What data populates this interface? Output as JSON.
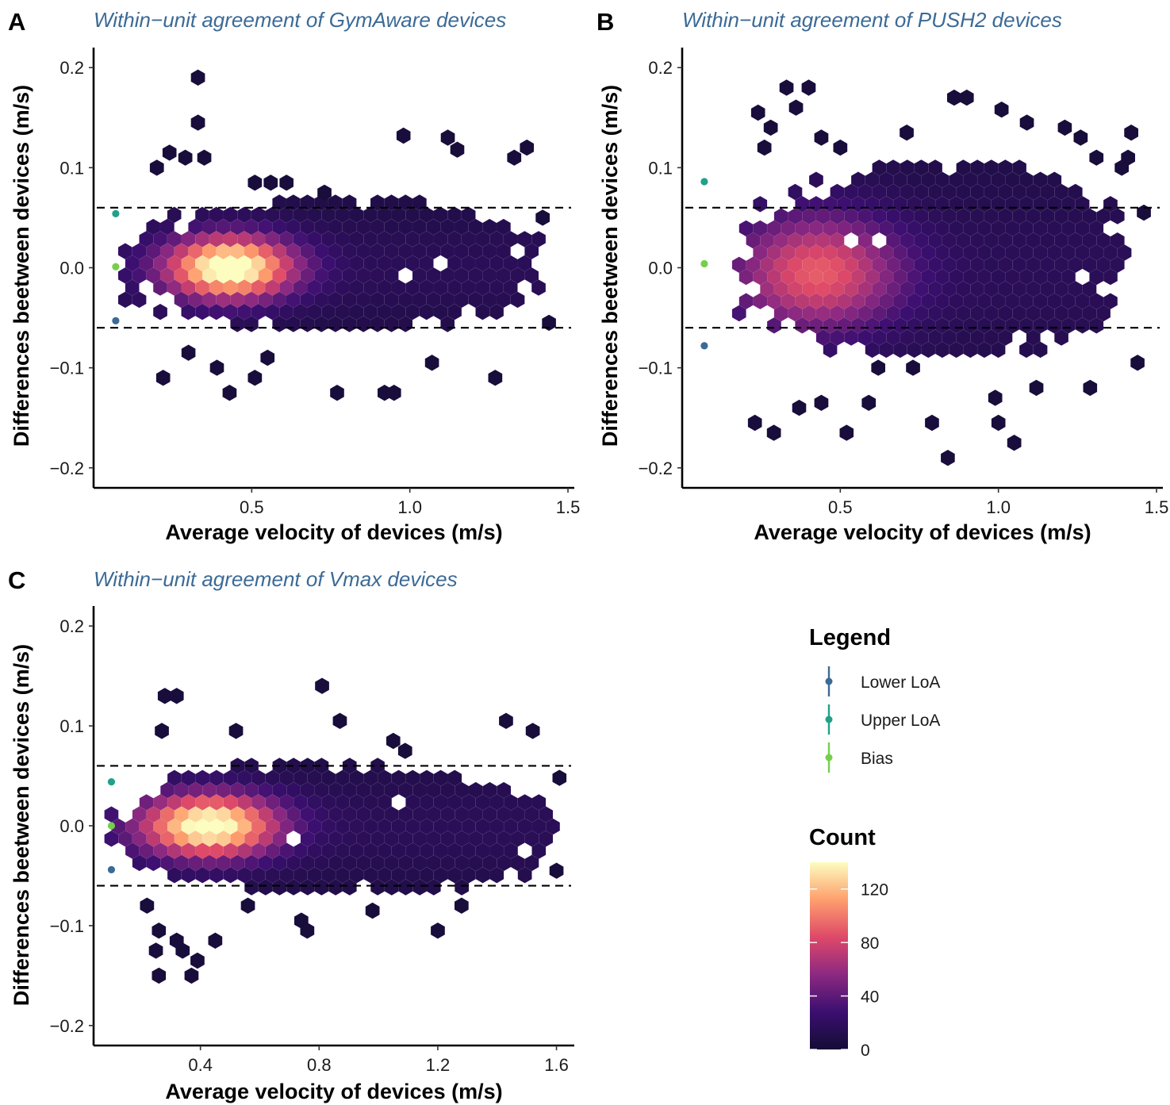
{
  "chart_data": [
    {
      "panel": "A",
      "type": "hexbin",
      "title": "Within−unit agreement of GymAware devices",
      "xlabel": "Average velocity of devices (m/s)",
      "ylabel": "Differences beetween devices (m/s)",
      "xlim": [
        0.0,
        1.52
      ],
      "ylim": [
        -0.22,
        0.22
      ],
      "xticks": [
        {
          "v": 0.5,
          "label": "0.5"
        },
        {
          "v": 1.0,
          "label": "1.0"
        },
        {
          "v": 1.5,
          "label": "1.5"
        }
      ],
      "yticks": [
        {
          "v": 0.2,
          "label": "0.2"
        },
        {
          "v": 0.1,
          "label": "0.1"
        },
        {
          "v": 0.0,
          "label": "0.0"
        },
        {
          "v": -0.1,
          "label": "−0.1"
        },
        {
          "v": -0.2,
          "label": "−0.2"
        }
      ],
      "limits_of_agreement": {
        "upper": 0.06,
        "lower": -0.06
      },
      "points": [
        {
          "name": "Lower LoA",
          "x": 0.07,
          "y": -0.053
        },
        {
          "name": "Upper LoA",
          "x": 0.07,
          "y": 0.054
        },
        {
          "name": "Bias",
          "x": 0.07,
          "y": 0.001
        }
      ],
      "density": {
        "center": [
          0.43,
          0.0
        ],
        "peak": 140,
        "spread_x": 0.14,
        "spread_y": 0.022,
        "x_range": [
          0.1,
          1.42
        ],
        "y_range": [
          -0.065,
          0.065
        ]
      },
      "outliers": [
        [
          0.33,
          0.19
        ],
        [
          0.33,
          0.145
        ],
        [
          0.29,
          0.11
        ],
        [
          0.35,
          0.11
        ],
        [
          0.2,
          0.1
        ],
        [
          0.24,
          0.115
        ],
        [
          0.98,
          0.132
        ],
        [
          1.12,
          0.13
        ],
        [
          1.15,
          0.118
        ],
        [
          1.37,
          0.12
        ],
        [
          1.33,
          0.11
        ],
        [
          0.51,
          0.085
        ],
        [
          0.56,
          0.085
        ],
        [
          0.61,
          0.085
        ],
        [
          0.73,
          0.075
        ],
        [
          1.42,
          0.05
        ],
        [
          0.22,
          -0.11
        ],
        [
          0.39,
          -0.1
        ],
        [
          0.43,
          -0.125
        ],
        [
          0.51,
          -0.11
        ],
        [
          0.77,
          -0.125
        ],
        [
          0.92,
          -0.125
        ],
        [
          0.95,
          -0.125
        ],
        [
          1.27,
          -0.11
        ],
        [
          1.44,
          -0.055
        ],
        [
          0.3,
          -0.085
        ],
        [
          0.55,
          -0.09
        ],
        [
          1.07,
          -0.095
        ]
      ]
    },
    {
      "panel": "B",
      "type": "hexbin",
      "title": "Within−unit agreement of PUSH2 devices",
      "xlabel": "Average velocity of devices (m/s)",
      "ylabel": "Differences beetween devices (m/s)",
      "xlim": [
        0.0,
        1.52
      ],
      "ylim": [
        -0.22,
        0.22
      ],
      "xticks": [
        {
          "v": 0.5,
          "label": "0.5"
        },
        {
          "v": 1.0,
          "label": "1.0"
        },
        {
          "v": 1.5,
          "label": "1.5"
        }
      ],
      "yticks": [
        {
          "v": 0.2,
          "label": "0.2"
        },
        {
          "v": 0.1,
          "label": "0.1"
        },
        {
          "v": 0.0,
          "label": "0.0"
        },
        {
          "v": -0.1,
          "label": "−0.1"
        },
        {
          "v": -0.2,
          "label": "−0.2"
        }
      ],
      "limits_of_agreement": {
        "upper": 0.06,
        "lower": -0.06
      },
      "points": [
        {
          "name": "Lower LoA",
          "x": 0.07,
          "y": -0.078
        },
        {
          "name": "Upper LoA",
          "x": 0.07,
          "y": 0.086
        },
        {
          "name": "Bias",
          "x": 0.07,
          "y": 0.004
        }
      ],
      "density": {
        "center": [
          0.43,
          -0.005
        ],
        "peak": 75,
        "spread_x": 0.18,
        "spread_y": 0.04,
        "x_range": [
          0.18,
          1.42
        ],
        "y_range": [
          -0.09,
          0.1
        ]
      },
      "outliers": [
        [
          0.33,
          0.18
        ],
        [
          0.4,
          0.18
        ],
        [
          0.24,
          0.155
        ],
        [
          0.36,
          0.16
        ],
        [
          0.28,
          0.14
        ],
        [
          0.26,
          0.12
        ],
        [
          0.44,
          0.13
        ],
        [
          0.5,
          0.12
        ],
        [
          0.71,
          0.135
        ],
        [
          0.86,
          0.17
        ],
        [
          0.9,
          0.17
        ],
        [
          1.01,
          0.158
        ],
        [
          1.09,
          0.145
        ],
        [
          1.21,
          0.14
        ],
        [
          1.26,
          0.13
        ],
        [
          1.31,
          0.11
        ],
        [
          1.42,
          0.135
        ],
        [
          1.41,
          0.11
        ],
        [
          1.39,
          0.1
        ],
        [
          1.46,
          0.055
        ],
        [
          0.23,
          -0.155
        ],
        [
          0.29,
          -0.165
        ],
        [
          0.37,
          -0.14
        ],
        [
          0.44,
          -0.135
        ],
        [
          0.52,
          -0.165
        ],
        [
          0.59,
          -0.135
        ],
        [
          0.79,
          -0.155
        ],
        [
          0.84,
          -0.19
        ],
        [
          0.99,
          -0.13
        ],
        [
          1.0,
          -0.155
        ],
        [
          1.05,
          -0.175
        ],
        [
          1.12,
          -0.12
        ],
        [
          1.29,
          -0.12
        ],
        [
          1.44,
          -0.095
        ],
        [
          0.62,
          -0.1
        ],
        [
          0.73,
          -0.1
        ]
      ]
    },
    {
      "panel": "C",
      "type": "hexbin",
      "title": "Within−unit agreement of Vmax devices",
      "xlabel": "Average velocity of devices (m/s)",
      "ylabel": "Differences beetween devices (m/s)",
      "xlim": [
        0.04,
        1.66
      ],
      "ylim": [
        -0.22,
        0.22
      ],
      "xticks": [
        {
          "v": 0.4,
          "label": "0.4"
        },
        {
          "v": 0.8,
          "label": "0.8"
        },
        {
          "v": 1.2,
          "label": "1.2"
        },
        {
          "v": 1.6,
          "label": "1.6"
        }
      ],
      "yticks": [
        {
          "v": 0.2,
          "label": "0.2"
        },
        {
          "v": 0.1,
          "label": "0.1"
        },
        {
          "v": 0.0,
          "label": "0.0"
        },
        {
          "v": -0.1,
          "label": "−0.1"
        },
        {
          "v": -0.2,
          "label": "−0.2"
        }
      ],
      "limits_of_agreement": {
        "upper": 0.06,
        "lower": -0.06
      },
      "points": [
        {
          "name": "Lower LoA",
          "x": 0.1,
          "y": -0.044
        },
        {
          "name": "Upper LoA",
          "x": 0.1,
          "y": 0.044
        },
        {
          "name": "Bias",
          "x": 0.1,
          "y": 0.0
        }
      ],
      "density": {
        "center": [
          0.43,
          0.0
        ],
        "peak": 135,
        "spread_x": 0.16,
        "spread_y": 0.022,
        "x_range": [
          0.1,
          1.6
        ],
        "y_range": [
          -0.07,
          0.06
        ]
      },
      "outliers": [
        [
          0.28,
          0.13
        ],
        [
          0.32,
          0.13
        ],
        [
          0.27,
          0.095
        ],
        [
          0.81,
          0.14
        ],
        [
          0.87,
          0.105
        ],
        [
          1.43,
          0.105
        ],
        [
          1.52,
          0.095
        ],
        [
          0.52,
          0.095
        ],
        [
          1.05,
          0.085
        ],
        [
          1.09,
          0.075
        ],
        [
          1.61,
          0.048
        ],
        [
          1.6,
          -0.045
        ],
        [
          0.26,
          -0.105
        ],
        [
          0.32,
          -0.115
        ],
        [
          0.34,
          -0.125
        ],
        [
          0.25,
          -0.125
        ],
        [
          0.26,
          -0.15
        ],
        [
          0.37,
          -0.15
        ],
        [
          0.39,
          -0.135
        ],
        [
          0.45,
          -0.115
        ],
        [
          0.74,
          -0.095
        ],
        [
          0.76,
          -0.105
        ],
        [
          1.2,
          -0.105
        ],
        [
          1.28,
          -0.08
        ],
        [
          0.22,
          -0.08
        ],
        [
          0.56,
          -0.08
        ],
        [
          0.98,
          -0.085
        ]
      ]
    }
  ],
  "panel_labels": {
    "a": "A",
    "b": "B",
    "c": "C"
  },
  "legend": {
    "title": "Legend",
    "items": [
      {
        "label": "Lower LoA",
        "color": "#3b6a96"
      },
      {
        "label": "Upper LoA",
        "color": "#21a08a"
      },
      {
        "label": "Bias",
        "color": "#75cf4c"
      }
    ]
  },
  "colorbar": {
    "title": "Count",
    "range": [
      0,
      140
    ],
    "ticks": [
      {
        "v": 0,
        "label": "0"
      },
      {
        "v": 40,
        "label": "40"
      },
      {
        "v": 80,
        "label": "80"
      },
      {
        "v": 120,
        "label": "120"
      }
    ],
    "colors": [
      "#140d35",
      "#3b0f70",
      "#8c2981",
      "#de4968",
      "#fe9f6d",
      "#fcfdbf"
    ]
  }
}
